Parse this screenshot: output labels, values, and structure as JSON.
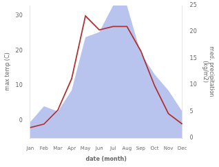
{
  "chart_data": {
    "type": "line",
    "categories": [
      "Jan",
      "Feb",
      "Mar",
      "Apr",
      "May",
      "Jun",
      "Jul",
      "Aug",
      "Sep",
      "Oct",
      "Nov",
      "Dec"
    ],
    "series": [
      {
        "type": "area",
        "color": "#b8c4ee",
        "axis": "y2",
        "values": [
          3,
          6,
          5,
          9,
          19,
          20,
          25,
          25,
          16,
          12,
          9,
          5
        ]
      },
      {
        "type": "line",
        "color": "#b03030",
        "values": [
          -2,
          -1,
          3,
          12,
          30,
          26,
          27,
          27,
          20,
          10,
          2,
          -1
        ]
      }
    ],
    "xlabel": "date (month)",
    "ylabel": "max temp (C)",
    "y2label": "med. precipitation\n(kg/m2)",
    "ylim": [
      -5,
      33
    ],
    "yticks": [
      0,
      10,
      20,
      30
    ],
    "y2lim": [
      0,
      25
    ],
    "y2ticks": [
      0,
      5,
      10,
      15,
      20,
      25
    ],
    "grid": false
  }
}
